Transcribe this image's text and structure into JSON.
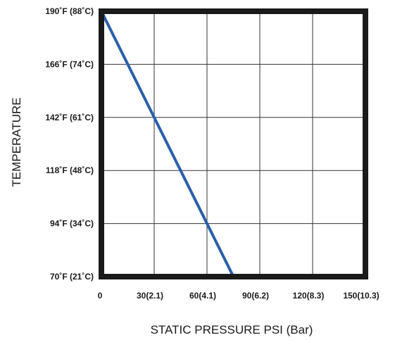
{
  "chart_data": {
    "type": "line",
    "xlabel": "STATIC PRESSURE  PSI (Bar)",
    "ylabel": "TEMPERATURE",
    "x_ticks": [
      "0",
      "30(2.1)",
      "60(4.1)",
      "90(6.2)",
      "120(8.3)",
      "150(10.3)"
    ],
    "y_ticks": [
      "70˚F (21˚C)",
      "94˚F (34˚C)",
      "118˚F (48˚C)",
      "142˚F (61˚C)",
      "166˚F (74˚C)",
      "190˚F (88˚C)"
    ],
    "xlim": [
      0,
      150
    ],
    "ylim": [
      70,
      190
    ],
    "grid": true,
    "series": [
      {
        "color": "#2a5faa",
        "x": [
          0,
          75
        ],
        "y": [
          190,
          70
        ]
      }
    ]
  }
}
